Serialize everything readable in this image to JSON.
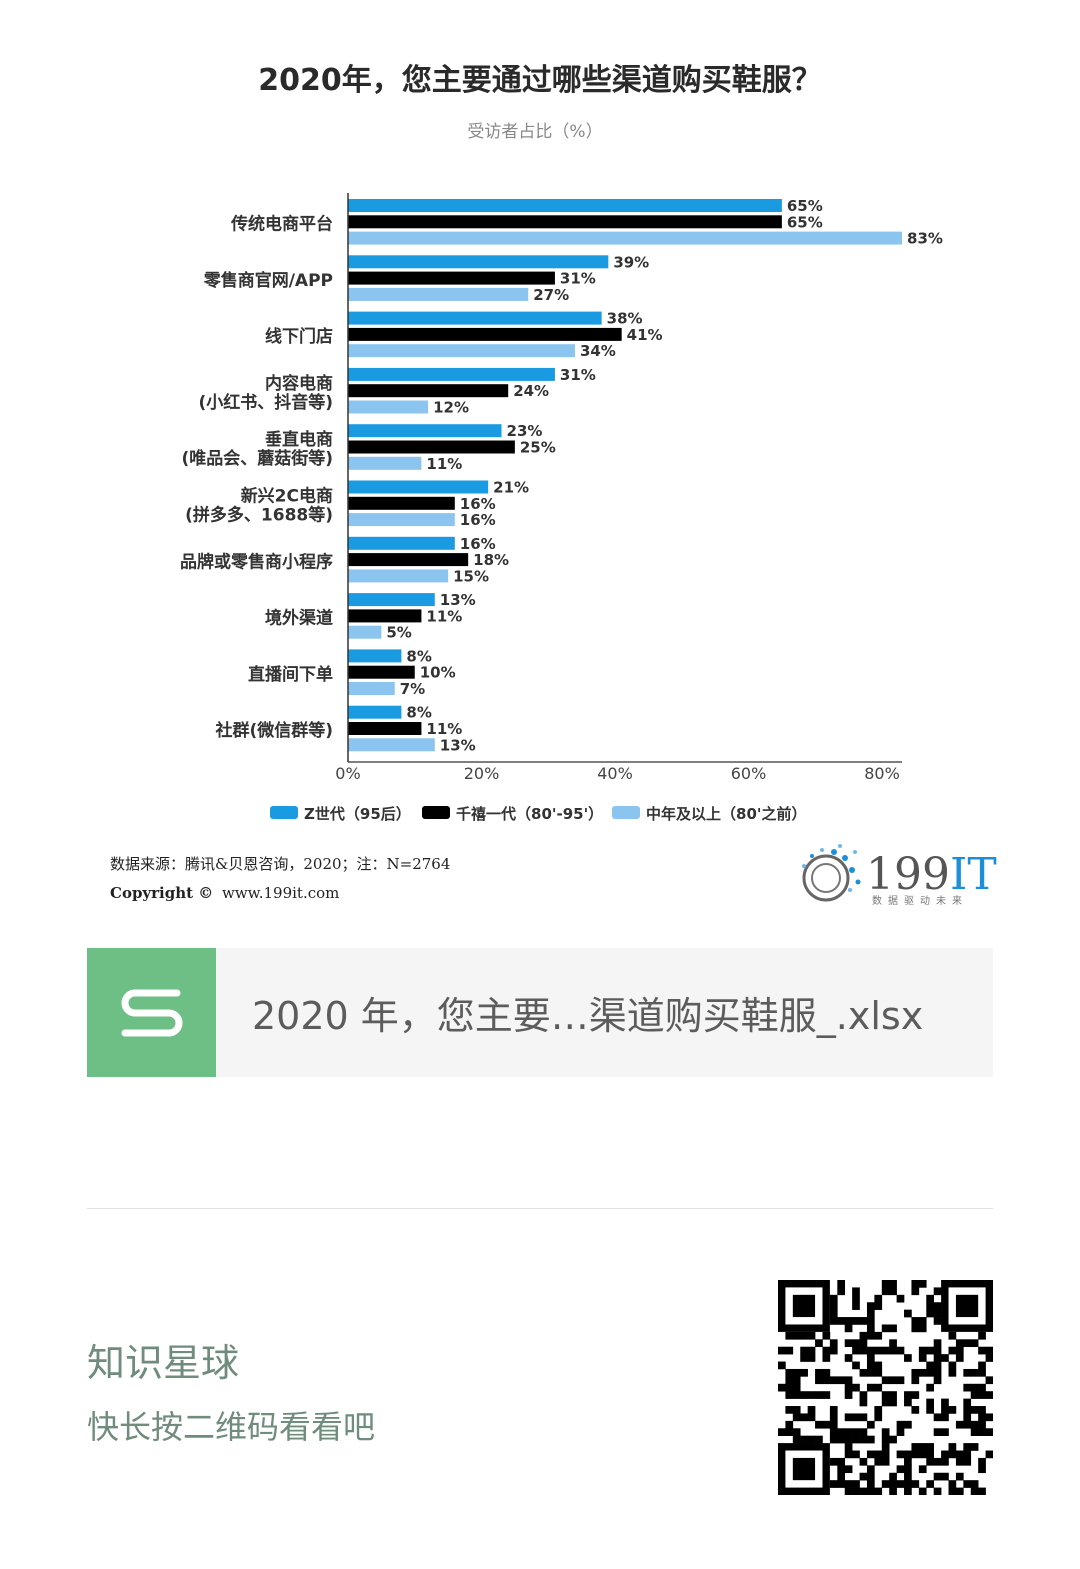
{
  "chart_data": {
    "type": "bar",
    "orientation": "horizontal",
    "title": "2020年，您主要通过哪些渠道购买鞋服？",
    "subtitle": "受访者占比（%）",
    "categories": [
      [
        "传统电商平台"
      ],
      [
        "零售商官网/APP"
      ],
      [
        "线下门店"
      ],
      [
        "内容电商",
        "(小红书、抖音等)"
      ],
      [
        "垂直电商",
        "(唯品会、蘑菇街等)"
      ],
      [
        "新兴2C电商",
        "(拼多多、1688等)"
      ],
      [
        "品牌或零售商小程序"
      ],
      [
        "境外渠道"
      ],
      [
        "直播间下单"
      ],
      [
        "社群(微信群等)"
      ]
    ],
    "series": [
      {
        "name": "Z世代（95后）",
        "color": "#1a9ae0",
        "values": [
          65,
          39,
          38,
          31,
          23,
          21,
          16,
          13,
          8,
          8
        ]
      },
      {
        "name": "千禧一代（80'-95'）",
        "color": "#000000",
        "values": [
          65,
          31,
          41,
          24,
          25,
          16,
          18,
          11,
          10,
          11
        ]
      },
      {
        "name": "中年及以上（80'之前）",
        "color": "#8cc4f0",
        "values": [
          83,
          27,
          34,
          12,
          11,
          16,
          15,
          5,
          7,
          13
        ]
      }
    ],
    "xlim": [
      0,
      80
    ],
    "xticks": [
      "0%",
      "20%",
      "40%",
      "60%",
      "80%"
    ],
    "value_suffix": "%",
    "legend_position": "bottom"
  },
  "source": {
    "text": "数据来源：腾讯&贝恩咨询，2020；注：N=2764",
    "copyright_label": "Copyright ©",
    "site": "www.199it.com"
  },
  "logo": {
    "main": "199",
    "accent": "IT",
    "tagline": "数据驱动未来"
  },
  "file": {
    "name": "2020 年，您主要…渠道购买鞋服_.xlsx",
    "icon": "spreadsheet-s-icon"
  },
  "promo": {
    "title": "知识星球",
    "subtitle": "快长按二维码看看吧",
    "qr_icon": "qr-code-icon"
  }
}
